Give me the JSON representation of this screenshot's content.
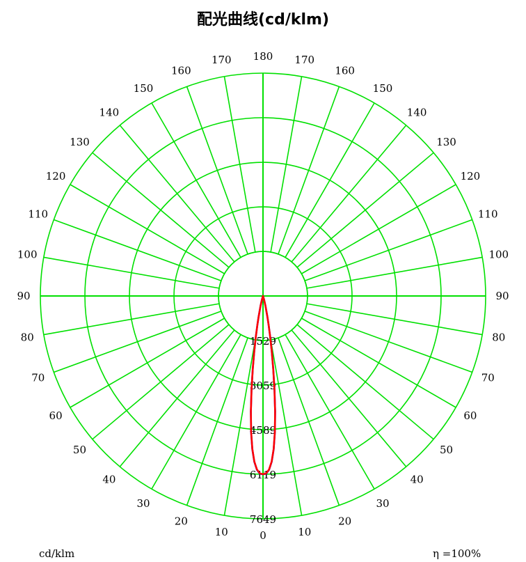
{
  "chart_data": {
    "type": "polar",
    "title": "配光曲线(cd/klm)",
    "unit": "cd/klm",
    "efficiency": "η =100%",
    "angle_labels_left": [
      "0",
      "10",
      "20",
      "30",
      "40",
      "50",
      "60",
      "70",
      "80",
      "90",
      "100",
      "110",
      "120",
      "130",
      "140",
      "150",
      "160",
      "170",
      "180"
    ],
    "angle_labels_right": [
      "10",
      "20",
      "30",
      "40",
      "50",
      "60",
      "70",
      "80",
      "90",
      "100",
      "110",
      "120",
      "130",
      "140",
      "150",
      "160",
      "170"
    ],
    "radial_ticks": [
      "1529",
      "3059",
      "4589",
      "6119",
      "7649"
    ],
    "r_max": 7649,
    "grid": true,
    "colors": {
      "grid": "#00e000",
      "series_c0": "#0000ff",
      "series_c90": "#ff0000"
    },
    "series": [
      {
        "color": "#0000ff",
        "angles": [
          0,
          1,
          2,
          3,
          4,
          5,
          6,
          7,
          8,
          9,
          10,
          11,
          12,
          14,
          16,
          18,
          20
        ],
        "values": [
          6119,
          6100,
          5970,
          5700,
          5270,
          4690,
          3990,
          3240,
          2530,
          1920,
          1420,
          1020,
          720,
          350,
          150,
          50,
          0
        ]
      },
      {
        "color": "#ff0000",
        "angles": [
          0,
          1,
          2,
          3,
          4,
          5,
          6,
          7,
          8,
          9,
          10,
          11,
          12,
          14,
          16,
          18,
          20
        ],
        "values": [
          6119,
          6090,
          5960,
          5690,
          5260,
          4680,
          3980,
          3230,
          2520,
          1910,
          1410,
          1010,
          710,
          340,
          140,
          45,
          0
        ]
      }
    ]
  }
}
